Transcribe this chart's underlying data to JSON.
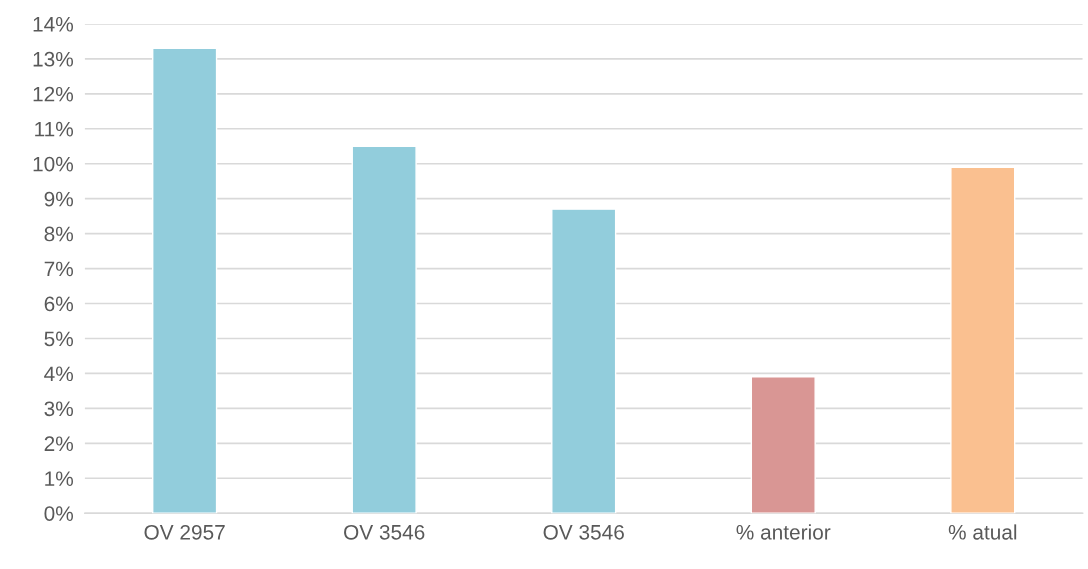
{
  "chart_data": {
    "type": "bar",
    "categories": [
      "OV 2957",
      "OV 3546",
      "OV 3546",
      "% anterior",
      "% atual"
    ],
    "values": [
      13.3,
      10.5,
      8.7,
      3.9,
      9.9
    ],
    "colors": [
      "#92cddc",
      "#92cddc",
      "#92cddc",
      "#d99694",
      "#fac090"
    ],
    "ylim": [
      0,
      14
    ],
    "yticks": [
      {
        "value": 0,
        "label": "0%"
      },
      {
        "value": 1,
        "label": "1%"
      },
      {
        "value": 2,
        "label": "2%"
      },
      {
        "value": 3,
        "label": "3%"
      },
      {
        "value": 4,
        "label": "4%"
      },
      {
        "value": 5,
        "label": "5%"
      },
      {
        "value": 6,
        "label": "6%"
      },
      {
        "value": 7,
        "label": "7%"
      },
      {
        "value": 8,
        "label": "8%"
      },
      {
        "value": 9,
        "label": "9%"
      },
      {
        "value": 10,
        "label": "10%"
      },
      {
        "value": 11,
        "label": "11%"
      },
      {
        "value": 12,
        "label": "12%"
      },
      {
        "value": 13,
        "label": "13%"
      },
      {
        "value": 14,
        "label": "14%"
      }
    ],
    "grid": "y"
  }
}
